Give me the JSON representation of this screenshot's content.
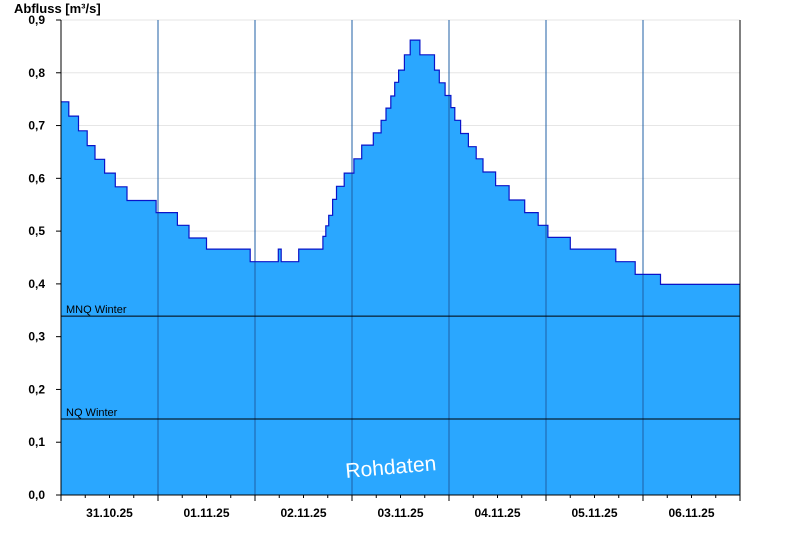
{
  "chart_data": {
    "type": "area",
    "title": "",
    "ylabel": "Abfluss [m³/s]",
    "xlabel": "",
    "ylim": [
      0,
      0.9
    ],
    "xlim": [
      30.5,
      37.5
    ],
    "yticks": [
      0,
      0.1,
      0.2,
      0.3,
      0.4,
      0.5,
      0.6,
      0.7,
      0.8,
      0.9
    ],
    "ytick_labels": [
      "0,0",
      "0,1",
      "0,2",
      "0,3",
      "0,4",
      "0,5",
      "0,6",
      "0,7",
      "0,8",
      "0,9"
    ],
    "x_note": "x values are dates in day-of-month units (30.5 = 30.10.25 12:00, 32.0 = 01.11.25 00:00)",
    "xtick_positions": [
      31,
      32,
      33,
      34,
      35,
      36,
      37
    ],
    "xtick_labels": [
      "31.10.25",
      "01.11.25",
      "02.11.25",
      "03.11.25",
      "04.11.25",
      "05.11.25",
      "06.11.25"
    ],
    "grid": true,
    "fill_color": "#2aa7ff",
    "line_color": "#0a14c8",
    "series": [
      {
        "name": "",
        "points": [
          [
            30.5,
            0.745
          ],
          [
            30.58,
            0.745
          ],
          [
            30.58,
            0.718
          ],
          [
            30.68,
            0.718
          ],
          [
            30.68,
            0.69
          ],
          [
            30.77,
            0.69
          ],
          [
            30.77,
            0.662
          ],
          [
            30.85,
            0.662
          ],
          [
            30.85,
            0.636
          ],
          [
            30.95,
            0.636
          ],
          [
            30.95,
            0.61
          ],
          [
            31.06,
            0.61
          ],
          [
            31.06,
            0.584
          ],
          [
            31.18,
            0.584
          ],
          [
            31.18,
            0.558
          ],
          [
            31.35,
            0.558
          ],
          [
            31.48,
            0.558
          ],
          [
            31.48,
            0.535
          ],
          [
            31.7,
            0.535
          ],
          [
            31.7,
            0.511
          ],
          [
            31.82,
            0.511
          ],
          [
            31.82,
            0.487
          ],
          [
            32.0,
            0.487
          ],
          [
            32.0,
            0.466
          ],
          [
            32.45,
            0.466
          ],
          [
            32.45,
            0.442
          ],
          [
            32.74,
            0.442
          ],
          [
            32.74,
            0.466
          ],
          [
            32.77,
            0.466
          ],
          [
            32.77,
            0.442
          ],
          [
            32.95,
            0.442
          ],
          [
            32.95,
            0.466
          ],
          [
            33.1,
            0.466
          ],
          [
            33.2,
            0.466
          ],
          [
            33.2,
            0.49
          ],
          [
            33.23,
            0.49
          ],
          [
            33.23,
            0.51
          ],
          [
            33.26,
            0.51
          ],
          [
            33.26,
            0.53
          ],
          [
            33.3,
            0.53
          ],
          [
            33.3,
            0.56
          ],
          [
            33.34,
            0.56
          ],
          [
            33.34,
            0.585
          ],
          [
            33.42,
            0.585
          ],
          [
            33.42,
            0.61
          ],
          [
            33.52,
            0.61
          ],
          [
            33.52,
            0.637
          ],
          [
            33.6,
            0.637
          ],
          [
            33.6,
            0.663
          ],
          [
            33.72,
            0.663
          ],
          [
            33.72,
            0.686
          ],
          [
            33.8,
            0.686
          ],
          [
            33.8,
            0.71
          ],
          [
            33.85,
            0.71
          ],
          [
            33.85,
            0.733
          ],
          [
            33.9,
            0.733
          ],
          [
            33.9,
            0.756
          ],
          [
            33.94,
            0.756
          ],
          [
            33.94,
            0.782
          ],
          [
            33.98,
            0.782
          ],
          [
            33.98,
            0.805
          ],
          [
            34.04,
            0.805
          ],
          [
            34.04,
            0.834
          ],
          [
            34.1,
            0.834
          ],
          [
            34.1,
            0.862
          ],
          [
            34.2,
            0.862
          ],
          [
            34.2,
            0.834
          ],
          [
            34.35,
            0.834
          ],
          [
            34.35,
            0.805
          ],
          [
            34.4,
            0.805
          ],
          [
            34.4,
            0.781
          ],
          [
            34.46,
            0.781
          ],
          [
            34.46,
            0.757
          ],
          [
            34.52,
            0.757
          ],
          [
            34.52,
            0.734
          ],
          [
            34.56,
            0.734
          ],
          [
            34.56,
            0.71
          ],
          [
            34.62,
            0.71
          ],
          [
            34.62,
            0.685
          ],
          [
            34.7,
            0.685
          ],
          [
            34.7,
            0.66
          ],
          [
            34.78,
            0.66
          ],
          [
            34.78,
            0.637
          ],
          [
            34.85,
            0.637
          ],
          [
            34.85,
            0.612
          ],
          [
            34.98,
            0.612
          ],
          [
            34.98,
            0.586
          ],
          [
            35.12,
            0.586
          ],
          [
            35.12,
            0.559
          ],
          [
            35.28,
            0.559
          ],
          [
            35.28,
            0.535
          ],
          [
            35.42,
            0.535
          ],
          [
            35.42,
            0.511
          ],
          [
            35.52,
            0.511
          ],
          [
            35.52,
            0.488
          ],
          [
            35.75,
            0.488
          ],
          [
            35.75,
            0.466
          ],
          [
            36.22,
            0.466
          ],
          [
            36.22,
            0.442
          ],
          [
            36.42,
            0.442
          ],
          [
            36.42,
            0.418
          ],
          [
            36.68,
            0.418
          ],
          [
            36.68,
            0.399
          ],
          [
            37.5,
            0.399
          ]
        ]
      }
    ],
    "reference_lines": [
      {
        "label": "MNQ Winter",
        "value": 0.339
      },
      {
        "label": "NQ Winter",
        "value": 0.144
      }
    ],
    "annotations": [
      "Rohdaten"
    ]
  }
}
